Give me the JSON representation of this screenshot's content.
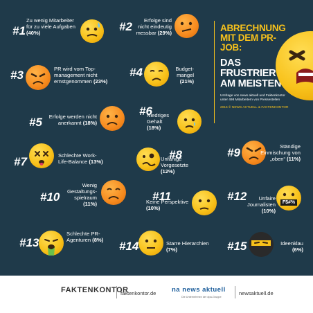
{
  "headline": {
    "title": "ABRECHNUNG MIT DEM PR-JOB:",
    "subtitle": "DAS FRUSTRIERT AM MEISTEN",
    "survey_note": "Umfrage von news aktuell und Faktenkontor\nunter 498 Mitarbeitern von Pressestellen",
    "copyright": "2015 © NEWS AKTUELL & FAKTENKONTOR"
  },
  "items": [
    {
      "rank": "#1",
      "label": "Zu wenig Mitarbeiter für zu viele Aufgaben",
      "pct": "(40%)",
      "icon": "anxious-sweat-face-icon"
    },
    {
      "rank": "#2",
      "label": "Erfolge sind nicht eindeutig messbar",
      "pct": "(29%)",
      "icon": "confused-face-icon"
    },
    {
      "rank": "#3",
      "label": "PR wird vom Top-management nicht ernstgenommen",
      "pct": "(23%)",
      "icon": "frustrated-face-icon"
    },
    {
      "rank": "#4",
      "label": "Budget-mangel",
      "pct": "(21%)",
      "icon": "disappointed-face-icon"
    },
    {
      "rank": "#5",
      "label": "Erfolge werden nicht anerkannt",
      "pct": "(18%)",
      "icon": "frowning-face-icon"
    },
    {
      "rank": "#6",
      "label": "Niedriges Gehalt",
      "pct": "(18%)",
      "icon": "sad-face-icon"
    },
    {
      "rank": "#7",
      "label": "Schlechte Work-Life-Balance",
      "pct": "(13%)",
      "icon": "dizzy-face-icon"
    },
    {
      "rank": "#8",
      "label": "Unfähige Vorgesetzte",
      "pct": "(12%)",
      "icon": "crazy-face-icon"
    },
    {
      "rank": "#9",
      "label": "Ständige Einmischung von „oben“",
      "pct": "(11%)",
      "icon": "angry-face-icon"
    },
    {
      "rank": "#10",
      "label": "Wenig Gestaltungs-spielraum",
      "pct": "(11%)",
      "icon": "unhappy-face-icon"
    },
    {
      "rank": "#11",
      "label": "Keine Perspektive",
      "pct": "(10%)",
      "icon": "worried-face-icon"
    },
    {
      "rank": "#12",
      "label": "Unfaire Journalisten",
      "pct": "(10%)",
      "icon": "cursing-face-icon"
    },
    {
      "rank": "#13",
      "label": "Schlechte PR-Agenturen",
      "pct": "(8%)",
      "icon": "sick-face-icon"
    },
    {
      "rank": "#14",
      "label": "Starre Hierarchien",
      "pct": "(7%)",
      "icon": "blank-face-icon"
    },
    {
      "rank": "#15",
      "label": "Ideenklau",
      "pct": "(6%)",
      "icon": "ninja-face-icon"
    }
  ],
  "cursing_symbols": "F$#%",
  "footer": {
    "logo1": "FAKTENKONTOR",
    "url1": "faktenkontor.de",
    "logo2": "na news aktuell",
    "tagline2": "Die Unternehmen der dpa-Gruppe",
    "url2": "newsaktuell.de"
  },
  "colors": {
    "background": "#1f3a4a",
    "accent": "#f8c21b",
    "text": "#ffffff"
  }
}
